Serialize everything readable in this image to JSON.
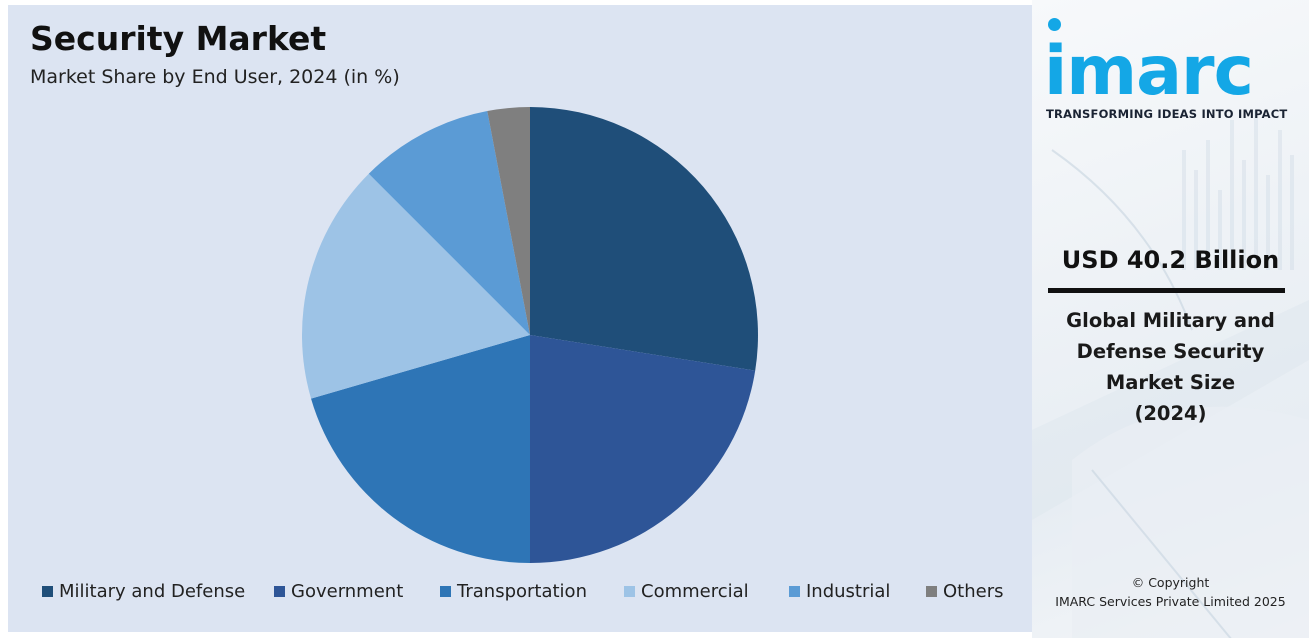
{
  "chart_data": {
    "type": "pie",
    "title": "Security Market",
    "subtitle": "Market Share by End User, 2024 (in %)",
    "categories": [
      "Military and Defense",
      "Government",
      "Transportation",
      "Commercial",
      "Industrial",
      "Others"
    ],
    "values": [
      27.5,
      22.5,
      20.5,
      17.0,
      9.5,
      3.0
    ],
    "colors": [
      "#1f4e79",
      "#2e5597",
      "#2e75b6",
      "#9dc3e6",
      "#5b9bd5",
      "#7f7f7f"
    ],
    "start_angle_deg": 0,
    "direction": "clockwise",
    "legend_position": "bottom"
  },
  "brand": {
    "logo": "imarc",
    "tagline": "TRANSFORMING IDEAS INTO IMPACT",
    "accent_color": "#14a7e6"
  },
  "highlight": {
    "value": "USD 40.2 Billion",
    "description_lines": [
      "Global Military and",
      "Defense Security",
      "Market Size",
      "(2024)"
    ]
  },
  "footer": {
    "copyright_line1": "© Copyright",
    "copyright_line2": "IMARC Services Private Limited 2025"
  }
}
